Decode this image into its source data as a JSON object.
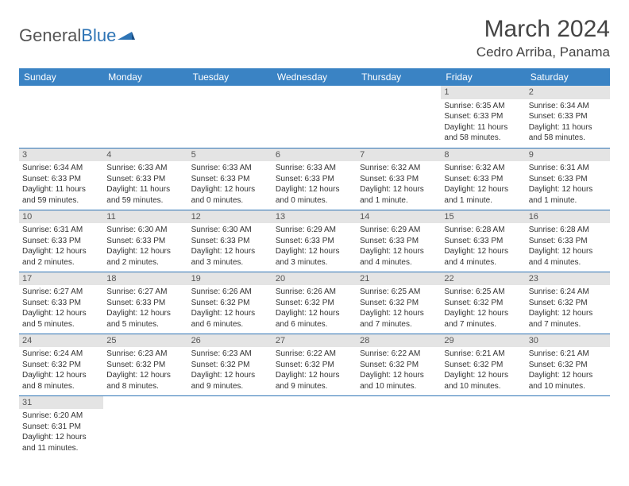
{
  "logo": {
    "text1": "General",
    "text2": "Blue"
  },
  "title": "March 2024",
  "location": "Cedro Arriba, Panama",
  "weekdays": [
    "Sunday",
    "Monday",
    "Tuesday",
    "Wednesday",
    "Thursday",
    "Friday",
    "Saturday"
  ],
  "colors": {
    "header_bg": "#3a83c4",
    "row_divider": "#2e74b5",
    "daynum_bg": "#e4e4e4",
    "text": "#333333"
  },
  "layout": {
    "cols": 7,
    "rows": 6,
    "first_weekday_index": 5,
    "days_in_month": 31
  },
  "days": {
    "1": {
      "sunrise": "6:35 AM",
      "sunset": "6:33 PM",
      "daylight": "11 hours and 58 minutes."
    },
    "2": {
      "sunrise": "6:34 AM",
      "sunset": "6:33 PM",
      "daylight": "11 hours and 58 minutes."
    },
    "3": {
      "sunrise": "6:34 AM",
      "sunset": "6:33 PM",
      "daylight": "11 hours and 59 minutes."
    },
    "4": {
      "sunrise": "6:33 AM",
      "sunset": "6:33 PM",
      "daylight": "11 hours and 59 minutes."
    },
    "5": {
      "sunrise": "6:33 AM",
      "sunset": "6:33 PM",
      "daylight": "12 hours and 0 minutes."
    },
    "6": {
      "sunrise": "6:33 AM",
      "sunset": "6:33 PM",
      "daylight": "12 hours and 0 minutes."
    },
    "7": {
      "sunrise": "6:32 AM",
      "sunset": "6:33 PM",
      "daylight": "12 hours and 1 minute."
    },
    "8": {
      "sunrise": "6:32 AM",
      "sunset": "6:33 PM",
      "daylight": "12 hours and 1 minute."
    },
    "9": {
      "sunrise": "6:31 AM",
      "sunset": "6:33 PM",
      "daylight": "12 hours and 1 minute."
    },
    "10": {
      "sunrise": "6:31 AM",
      "sunset": "6:33 PM",
      "daylight": "12 hours and 2 minutes."
    },
    "11": {
      "sunrise": "6:30 AM",
      "sunset": "6:33 PM",
      "daylight": "12 hours and 2 minutes."
    },
    "12": {
      "sunrise": "6:30 AM",
      "sunset": "6:33 PM",
      "daylight": "12 hours and 3 minutes."
    },
    "13": {
      "sunrise": "6:29 AM",
      "sunset": "6:33 PM",
      "daylight": "12 hours and 3 minutes."
    },
    "14": {
      "sunrise": "6:29 AM",
      "sunset": "6:33 PM",
      "daylight": "12 hours and 4 minutes."
    },
    "15": {
      "sunrise": "6:28 AM",
      "sunset": "6:33 PM",
      "daylight": "12 hours and 4 minutes."
    },
    "16": {
      "sunrise": "6:28 AM",
      "sunset": "6:33 PM",
      "daylight": "12 hours and 4 minutes."
    },
    "17": {
      "sunrise": "6:27 AM",
      "sunset": "6:33 PM",
      "daylight": "12 hours and 5 minutes."
    },
    "18": {
      "sunrise": "6:27 AM",
      "sunset": "6:33 PM",
      "daylight": "12 hours and 5 minutes."
    },
    "19": {
      "sunrise": "6:26 AM",
      "sunset": "6:32 PM",
      "daylight": "12 hours and 6 minutes."
    },
    "20": {
      "sunrise": "6:26 AM",
      "sunset": "6:32 PM",
      "daylight": "12 hours and 6 minutes."
    },
    "21": {
      "sunrise": "6:25 AM",
      "sunset": "6:32 PM",
      "daylight": "12 hours and 7 minutes."
    },
    "22": {
      "sunrise": "6:25 AM",
      "sunset": "6:32 PM",
      "daylight": "12 hours and 7 minutes."
    },
    "23": {
      "sunrise": "6:24 AM",
      "sunset": "6:32 PM",
      "daylight": "12 hours and 7 minutes."
    },
    "24": {
      "sunrise": "6:24 AM",
      "sunset": "6:32 PM",
      "daylight": "12 hours and 8 minutes."
    },
    "25": {
      "sunrise": "6:23 AM",
      "sunset": "6:32 PM",
      "daylight": "12 hours and 8 minutes."
    },
    "26": {
      "sunrise": "6:23 AM",
      "sunset": "6:32 PM",
      "daylight": "12 hours and 9 minutes."
    },
    "27": {
      "sunrise": "6:22 AM",
      "sunset": "6:32 PM",
      "daylight": "12 hours and 9 minutes."
    },
    "28": {
      "sunrise": "6:22 AM",
      "sunset": "6:32 PM",
      "daylight": "12 hours and 10 minutes."
    },
    "29": {
      "sunrise": "6:21 AM",
      "sunset": "6:32 PM",
      "daylight": "12 hours and 10 minutes."
    },
    "30": {
      "sunrise": "6:21 AM",
      "sunset": "6:32 PM",
      "daylight": "12 hours and 10 minutes."
    },
    "31": {
      "sunrise": "6:20 AM",
      "sunset": "6:31 PM",
      "daylight": "12 hours and 11 minutes."
    }
  },
  "labels": {
    "sunrise": "Sunrise:",
    "sunset": "Sunset:",
    "daylight": "Daylight:"
  }
}
